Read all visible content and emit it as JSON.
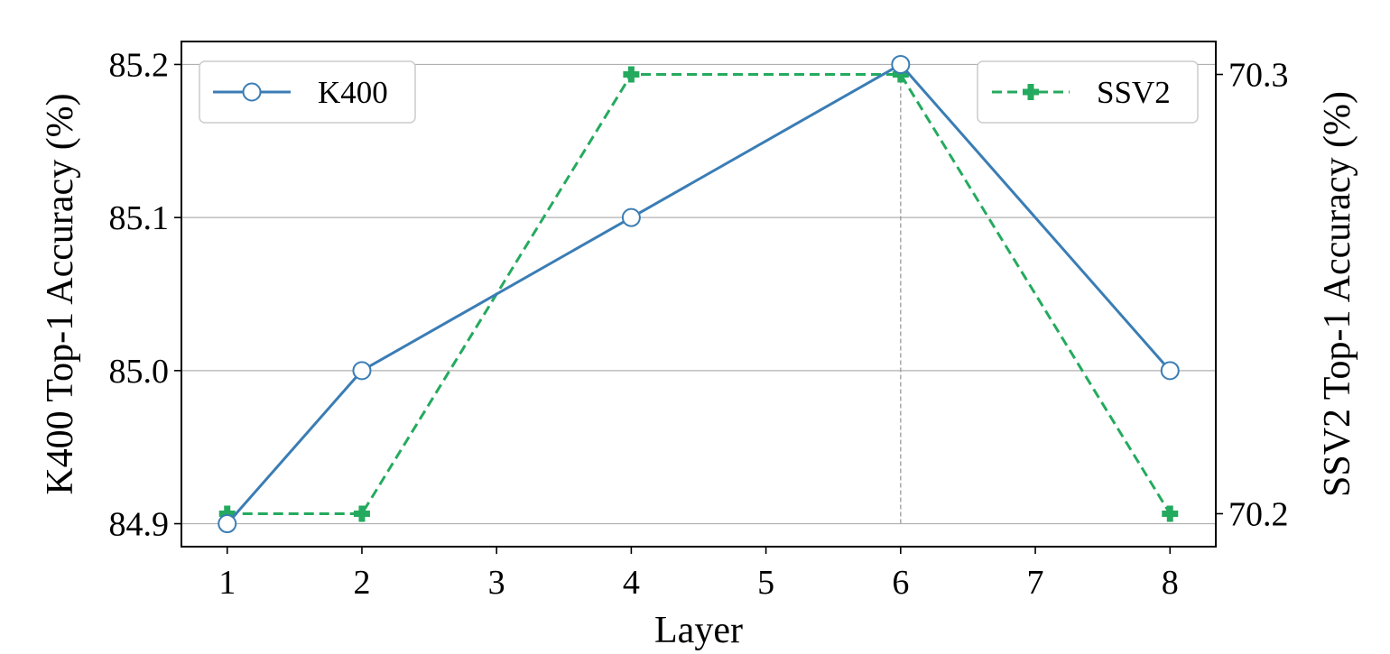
{
  "chart_data": {
    "type": "line",
    "x": [
      1,
      2,
      4,
      6,
      8
    ],
    "xticks": [
      1,
      2,
      3,
      4,
      5,
      6,
      7,
      8
    ],
    "xlim": [
      0.66,
      8.34
    ],
    "xlabel": "Layer",
    "ylabel_left": "K400 Top-1 Accuracy (%)",
    "ylabel_right": "SSV2 Top-1 Accuracy (%)",
    "ylim_left": [
      84.885,
      85.215
    ],
    "ylim_right": [
      70.1925,
      70.3075
    ],
    "yticks_left": [
      "84.9",
      "85.0",
      "85.1",
      "85.2"
    ],
    "yticks_right": [
      "70.2",
      "70.3"
    ],
    "grid": "horizontal",
    "best_marker_x": 6,
    "series": [
      {
        "name": "K400",
        "axis": "left",
        "values": [
          84.9,
          85.0,
          85.1,
          85.2,
          85.0
        ],
        "color": "#3a7db5",
        "marker": "open-circle",
        "linestyle": "solid",
        "legend": "upper-left"
      },
      {
        "name": "SSV2",
        "axis": "right",
        "values": [
          70.2,
          70.2,
          70.3,
          70.3,
          70.2
        ],
        "color": "#24aa5e",
        "marker": "plus",
        "linestyle": "dashed",
        "legend": "upper-right"
      }
    ]
  }
}
